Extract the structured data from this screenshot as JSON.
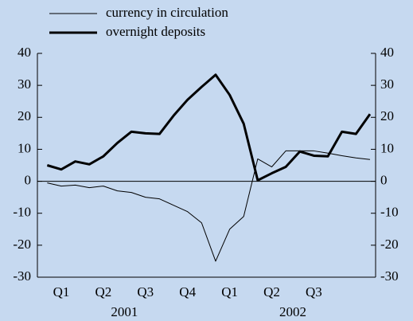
{
  "chart_data": {
    "type": "line",
    "x": [
      0,
      1,
      2,
      3,
      4,
      5,
      6,
      7,
      8,
      9,
      10,
      11,
      12,
      13,
      14,
      15,
      16,
      17,
      18,
      19,
      20,
      21,
      22,
      23
    ],
    "series": [
      {
        "name": "currency in circulation",
        "color": "#000000",
        "width": 1,
        "values": [
          -0.5,
          -1.5,
          -1.2,
          -2,
          -1.5,
          -3,
          -3.5,
          -5,
          -5.5,
          -7.5,
          -9.5,
          -13,
          -25,
          -15,
          -11,
          7,
          4.5,
          9.5,
          9.5,
          9.5,
          8.8,
          8,
          7.3,
          6.8
        ]
      },
      {
        "name": "overnight deposits",
        "color": "#000000",
        "width": 3,
        "values": [
          5,
          3.7,
          6.2,
          5.3,
          7.8,
          12,
          15.5,
          15,
          14.8,
          20.5,
          25.5,
          29.5,
          33.3,
          27,
          18,
          0.3,
          2.5,
          4.5,
          9.3,
          8,
          7.8,
          15.5,
          14.8,
          21
        ]
      }
    ],
    "xlim": [
      -0.7,
      23.4
    ],
    "xticks": [
      {
        "value": 1,
        "label": "Q1"
      },
      {
        "value": 4,
        "label": "Q2"
      },
      {
        "value": 7,
        "label": "Q3"
      },
      {
        "value": 10,
        "label": "Q4"
      },
      {
        "value": 13,
        "label": "Q1"
      },
      {
        "value": 16,
        "label": "Q2"
      },
      {
        "value": 19,
        "label": "Q3"
      }
    ],
    "year_ticks": [
      {
        "value": 5.5,
        "label": "2001"
      },
      {
        "value": 17.5,
        "label": "2002"
      }
    ],
    "ylim": [
      -30,
      40
    ],
    "yticks": [
      -30,
      -20,
      -10,
      0,
      10,
      20,
      30,
      40
    ],
    "legend": "top-left"
  }
}
